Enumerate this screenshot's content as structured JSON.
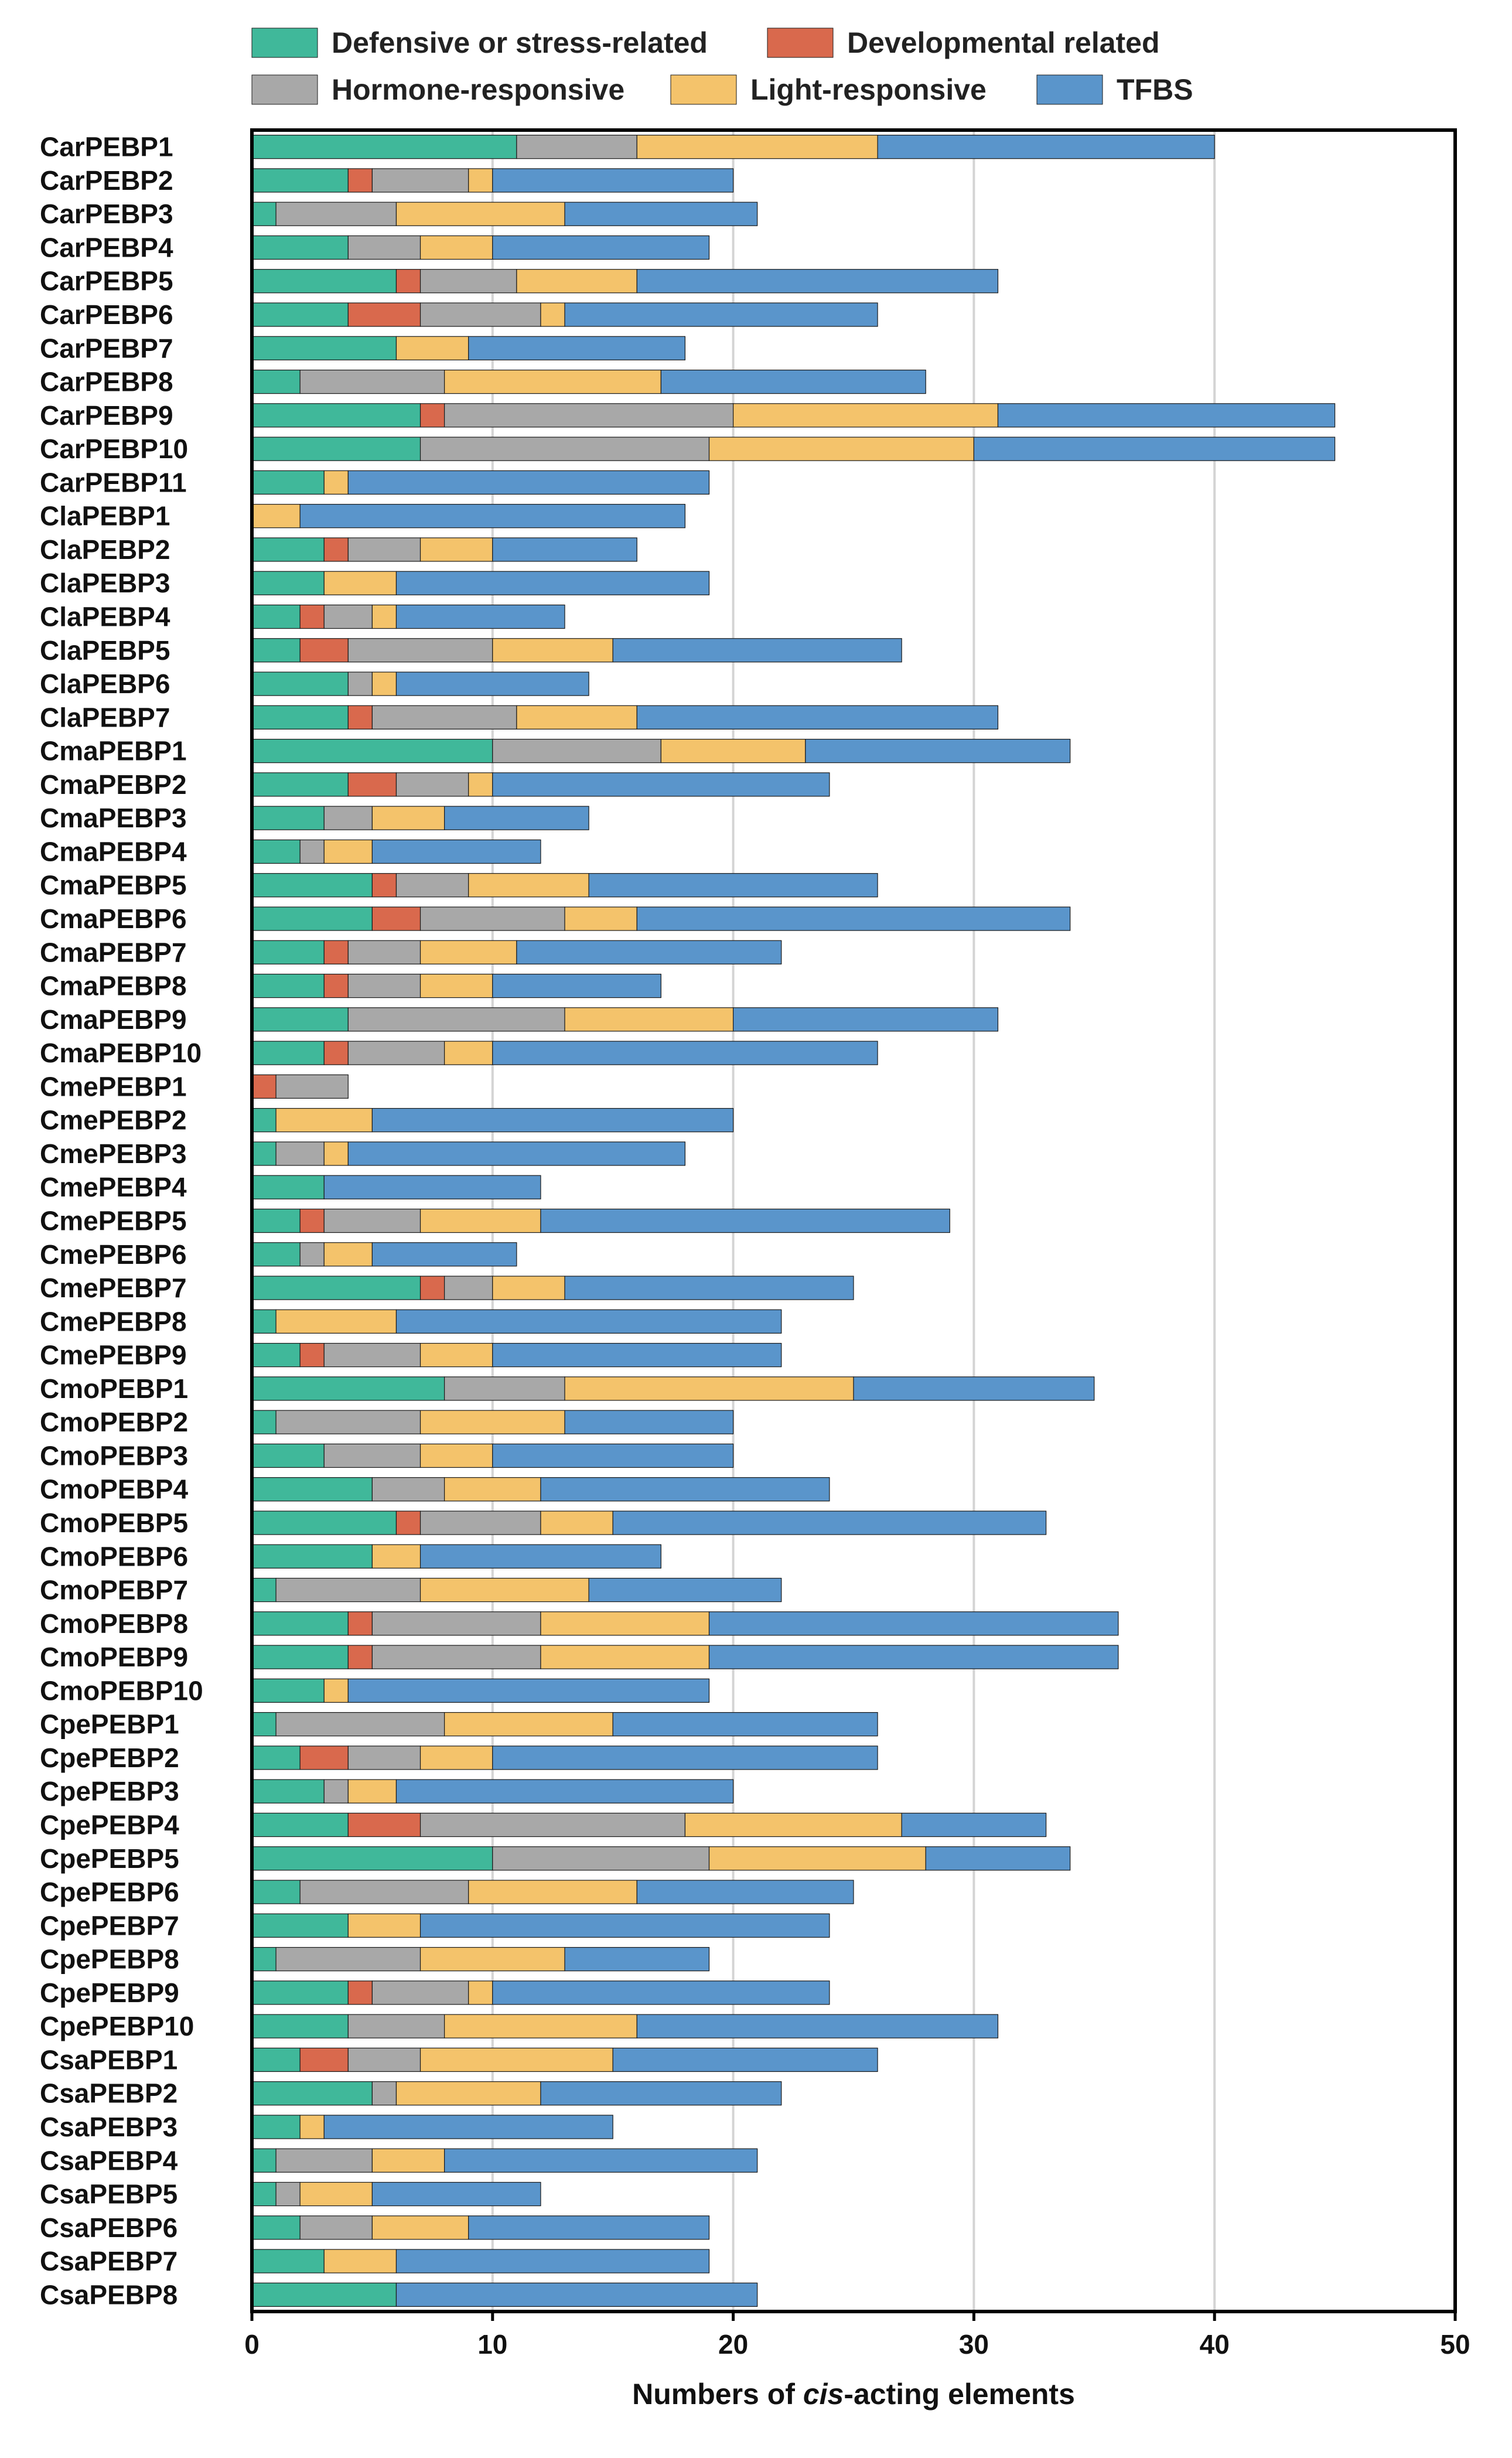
{
  "chart_data": {
    "type": "bar",
    "orientation": "horizontal",
    "stacked": true,
    "title": "",
    "ylabel": "",
    "xlabel_parts": [
      {
        "text": "Numbers of ",
        "italic": false
      },
      {
        "text": "cis",
        "italic": true
      },
      {
        "text": "-acting elements",
        "italic": false
      }
    ],
    "xlim": [
      0,
      50
    ],
    "xticks": [
      0,
      10,
      20,
      30,
      40,
      50
    ],
    "grid": "vertical",
    "legend_position": "top",
    "colors": {
      "defensive": "#40b89a",
      "developmental": "#d9694d",
      "hormone": "#a8a8a8",
      "light": "#f4c36b",
      "tfbs": "#5a95cb"
    },
    "series": [
      {
        "key": "defensive",
        "name": "Defensive or stress-related"
      },
      {
        "key": "developmental",
        "name": "Developmental related"
      },
      {
        "key": "hormone",
        "name": "Hormone-responsive"
      },
      {
        "key": "light",
        "name": "Light-responsive"
      },
      {
        "key": "tfbs",
        "name": "TFBS"
      }
    ],
    "categories": [
      "CarPEBP1",
      "CarPEBP2",
      "CarPEBP3",
      "CarPEBP4",
      "CarPEBP5",
      "CarPEBP6",
      "CarPEBP7",
      "CarPEBP8",
      "CarPEBP9",
      "CarPEBP10",
      "CarPEBP11",
      "ClaPEBP1",
      "ClaPEBP2",
      "ClaPEBP3",
      "ClaPEBP4",
      "ClaPEBP5",
      "ClaPEBP6",
      "ClaPEBP7",
      "CmaPEBP1",
      "CmaPEBP2",
      "CmaPEBP3",
      "CmaPEBP4",
      "CmaPEBP5",
      "CmaPEBP6",
      "CmaPEBP7",
      "CmaPEBP8",
      "CmaPEBP9",
      "CmaPEBP10",
      "CmePEBP1",
      "CmePEBP2",
      "CmePEBP3",
      "CmePEBP4",
      "CmePEBP5",
      "CmePEBP6",
      "CmePEBP7",
      "CmePEBP8",
      "CmePEBP9",
      "CmoPEBP1",
      "CmoPEBP2",
      "CmoPEBP3",
      "CmoPEBP4",
      "CmoPEBP5",
      "CmoPEBP6",
      "CmoPEBP7",
      "CmoPEBP8",
      "CmoPEBP9",
      "CmoPEBP10",
      "CpePEBP1",
      "CpePEBP2",
      "CpePEBP3",
      "CpePEBP4",
      "CpePEBP5",
      "CpePEBP6",
      "CpePEBP7",
      "CpePEBP8",
      "CpePEBP9",
      "CpePEBP10",
      "CsaPEBP1",
      "CsaPEBP2",
      "CsaPEBP3",
      "CsaPEBP4",
      "CsaPEBP5",
      "CsaPEBP6",
      "CsaPEBP7",
      "CsaPEBP8"
    ],
    "values": [
      [
        11,
        0,
        5,
        10,
        14
      ],
      [
        4,
        1,
        4,
        1,
        10
      ],
      [
        1,
        0,
        5,
        7,
        8
      ],
      [
        4,
        0,
        3,
        3,
        9
      ],
      [
        6,
        1,
        4,
        5,
        15
      ],
      [
        4,
        3,
        5,
        1,
        13
      ],
      [
        6,
        0,
        0,
        3,
        9
      ],
      [
        2,
        0,
        6,
        9,
        11
      ],
      [
        7,
        1,
        12,
        11,
        14
      ],
      [
        7,
        0,
        12,
        11,
        15
      ],
      [
        3,
        0,
        0,
        1,
        15
      ],
      [
        0,
        0,
        0,
        2,
        16
      ],
      [
        3,
        1,
        3,
        3,
        6
      ],
      [
        3,
        0,
        0,
        3,
        13
      ],
      [
        2,
        1,
        2,
        1,
        7
      ],
      [
        2,
        2,
        6,
        5,
        12
      ],
      [
        4,
        0,
        1,
        1,
        8
      ],
      [
        4,
        1,
        6,
        5,
        15
      ],
      [
        10,
        0,
        7,
        6,
        11
      ],
      [
        4,
        2,
        3,
        1,
        14
      ],
      [
        3,
        0,
        2,
        3,
        6
      ],
      [
        2,
        0,
        1,
        2,
        7
      ],
      [
        5,
        1,
        3,
        5,
        12
      ],
      [
        5,
        2,
        6,
        3,
        18
      ],
      [
        3,
        1,
        3,
        4,
        11
      ],
      [
        3,
        1,
        3,
        3,
        7
      ],
      [
        4,
        0,
        9,
        7,
        11
      ],
      [
        3,
        1,
        4,
        2,
        16
      ],
      [
        0,
        1,
        3,
        0,
        0
      ],
      [
        1,
        0,
        0,
        4,
        15
      ],
      [
        1,
        0,
        2,
        1,
        14
      ],
      [
        3,
        0,
        0,
        0,
        9
      ],
      [
        2,
        1,
        4,
        5,
        17
      ],
      [
        2,
        0,
        1,
        2,
        6
      ],
      [
        7,
        1,
        2,
        3,
        12
      ],
      [
        1,
        0,
        0,
        5,
        16
      ],
      [
        2,
        1,
        4,
        3,
        12
      ],
      [
        8,
        0,
        5,
        12,
        10
      ],
      [
        1,
        0,
        6,
        6,
        7
      ],
      [
        3,
        0,
        4,
        3,
        10
      ],
      [
        5,
        0,
        3,
        4,
        12
      ],
      [
        6,
        1,
        5,
        3,
        18
      ],
      [
        5,
        0,
        0,
        2,
        10
      ],
      [
        1,
        0,
        6,
        7,
        8
      ],
      [
        4,
        1,
        7,
        7,
        17
      ],
      [
        4,
        1,
        7,
        7,
        17
      ],
      [
        3,
        0,
        0,
        1,
        15
      ],
      [
        1,
        0,
        7,
        7,
        11
      ],
      [
        2,
        2,
        3,
        3,
        16
      ],
      [
        3,
        0,
        1,
        2,
        14
      ],
      [
        4,
        3,
        11,
        9,
        6
      ],
      [
        10,
        0,
        9,
        9,
        6
      ],
      [
        2,
        0,
        7,
        7,
        9
      ],
      [
        4,
        0,
        0,
        3,
        17
      ],
      [
        1,
        0,
        6,
        6,
        6
      ],
      [
        4,
        1,
        4,
        1,
        14
      ],
      [
        4,
        0,
        4,
        8,
        15
      ],
      [
        2,
        2,
        3,
        8,
        11
      ],
      [
        5,
        0,
        1,
        6,
        10
      ],
      [
        2,
        0,
        0,
        1,
        12
      ],
      [
        1,
        0,
        4,
        3,
        13
      ],
      [
        1,
        0,
        1,
        3,
        7
      ],
      [
        2,
        0,
        3,
        4,
        10
      ],
      [
        3,
        0,
        0,
        3,
        13
      ],
      [
        6,
        0,
        0,
        0,
        15
      ]
    ]
  }
}
